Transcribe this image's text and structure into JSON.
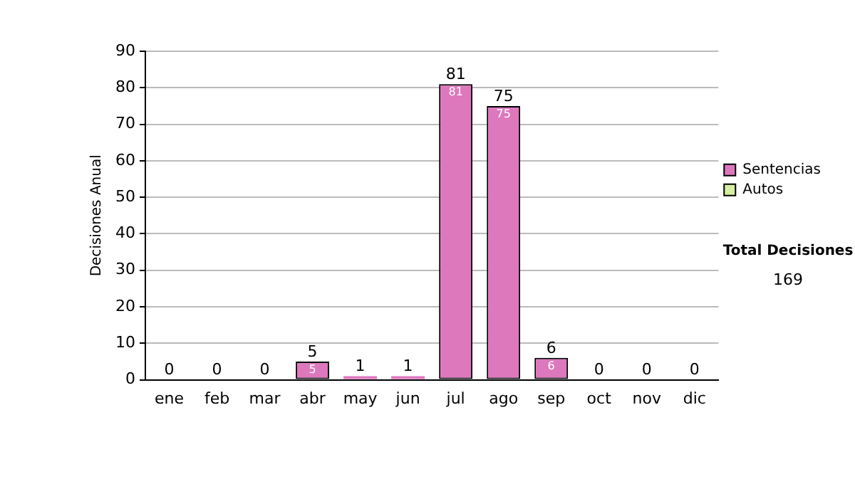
{
  "chart_data": {
    "type": "bar",
    "stacked": true,
    "ylabel": "Decisiones Anual",
    "categories": [
      "ene",
      "feb",
      "mar",
      "abr",
      "may",
      "jun",
      "jul",
      "ago",
      "sep",
      "oct",
      "nov",
      "dic"
    ],
    "series": [
      {
        "name": "Sentencias",
        "color": "#dd78bd",
        "values": [
          0,
          0,
          0,
          5,
          1,
          1,
          81,
          75,
          6,
          0,
          0,
          0
        ],
        "value_labels": [
          null,
          null,
          null,
          "5",
          null,
          null,
          "81",
          "75",
          "6",
          null,
          null,
          null
        ]
      },
      {
        "name": "Autos",
        "color": "#d6eea0",
        "values": [
          0,
          0,
          0,
          0,
          0,
          0,
          0,
          0,
          0,
          0,
          0,
          0
        ]
      }
    ],
    "totals": [
      "0",
      "0",
      "0",
      "5",
      "1",
      "1",
      "81",
      "75",
      "6",
      "0",
      "0",
      "0"
    ],
    "ylim": [
      0,
      90
    ],
    "yticks": [
      0,
      10,
      20,
      30,
      40,
      50,
      60,
      70,
      80,
      90
    ],
    "grid": "y",
    "legend": "right",
    "annotations": [
      "Total Decisiones",
      "169"
    ]
  }
}
